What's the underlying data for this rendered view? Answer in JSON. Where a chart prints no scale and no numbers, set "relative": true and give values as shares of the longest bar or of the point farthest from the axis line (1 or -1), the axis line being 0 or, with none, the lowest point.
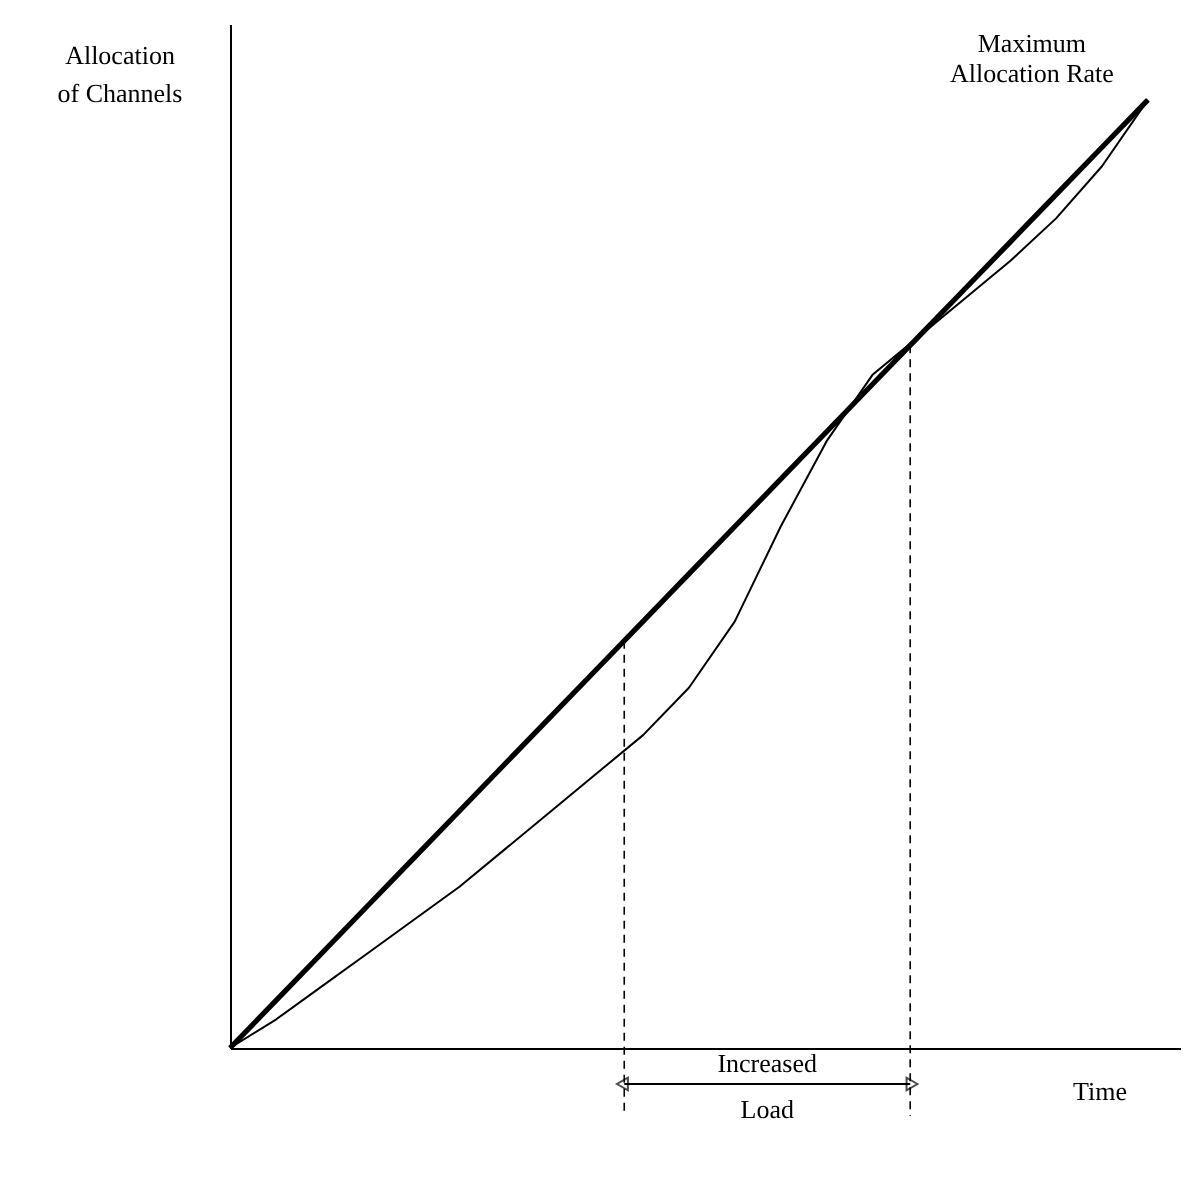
{
  "chart_data": {
    "type": "line",
    "relative": true,
    "marker": "none",
    "line_style": "solid",
    "xlabel": "Time",
    "ylabel": "Allocation\nof Channels",
    "categories": [
      null,
      null,
      null,
      null,
      null,
      null,
      null,
      null,
      null,
      null,
      null,
      null,
      null,
      null,
      null,
      null,
      null,
      null,
      null,
      null,
      null
    ],
    "series": [
      {
        "name": "Maximum Allocation Rate",
        "color": "#000000",
        "values": [
          0,
          0.05,
          0.1,
          0.15,
          0.2,
          0.25,
          0.3,
          0.35,
          0.4,
          0.45,
          0.5,
          0.55,
          0.6,
          0.65,
          0.7,
          0.75,
          0.8,
          0.85,
          0.9,
          0.95,
          1.0
        ]
      },
      {
        "color": "#000000",
        "values": [
          0,
          0.03,
          0.065,
          0.1,
          0.135,
          0.17,
          0.21,
          0.25,
          0.29,
          0.33,
          0.38,
          0.45,
          0.55,
          0.64,
          0.71,
          0.75,
          0.79,
          0.83,
          0.875,
          0.93,
          1.0
        ]
      }
    ],
    "annotations": [
      "Increased Load"
    ]
  }
}
